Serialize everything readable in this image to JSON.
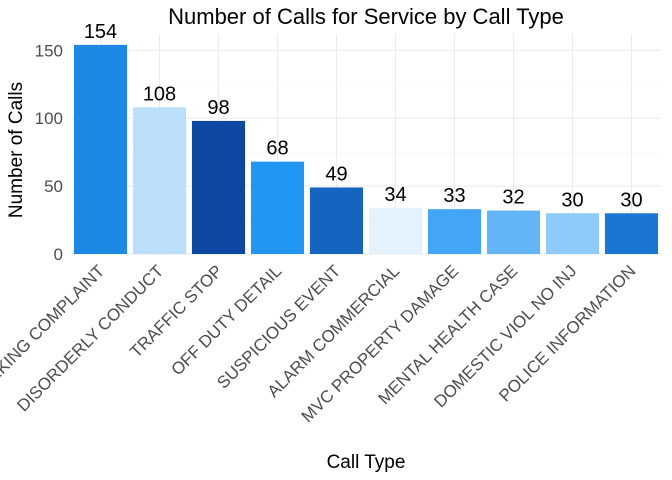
{
  "chart_data": {
    "type": "bar",
    "title": "Number of Calls for Service by Call Type",
    "xlabel": "Call Type",
    "ylabel": "Number of Calls",
    "ylim": [
      0,
      162
    ],
    "yticks": [
      0,
      50,
      100,
      150
    ],
    "grid": true,
    "legend": "none",
    "categories": [
      "PARKING COMPLAINT",
      "DISORDERLY CONDUCT",
      "TRAFFIC STOP",
      "OFF DUTY DETAIL",
      "SUSPICIOUS EVENT",
      "ALARM COMMERCIAL",
      "MVC PROPERTY DAMAGE",
      "MENTAL HEALTH CASE",
      "DOMESTIC VIOL NO INJ",
      "POLICE INFORMATION"
    ],
    "values": [
      154,
      108,
      98,
      68,
      49,
      34,
      33,
      32,
      30,
      30
    ],
    "colors": [
      "#1e88e5",
      "#bbdefb",
      "#0d47a1",
      "#2196f3",
      "#1565c0",
      "#e3f2fd",
      "#42a5f5",
      "#64b5f6",
      "#90caf9",
      "#1976d2"
    ]
  }
}
